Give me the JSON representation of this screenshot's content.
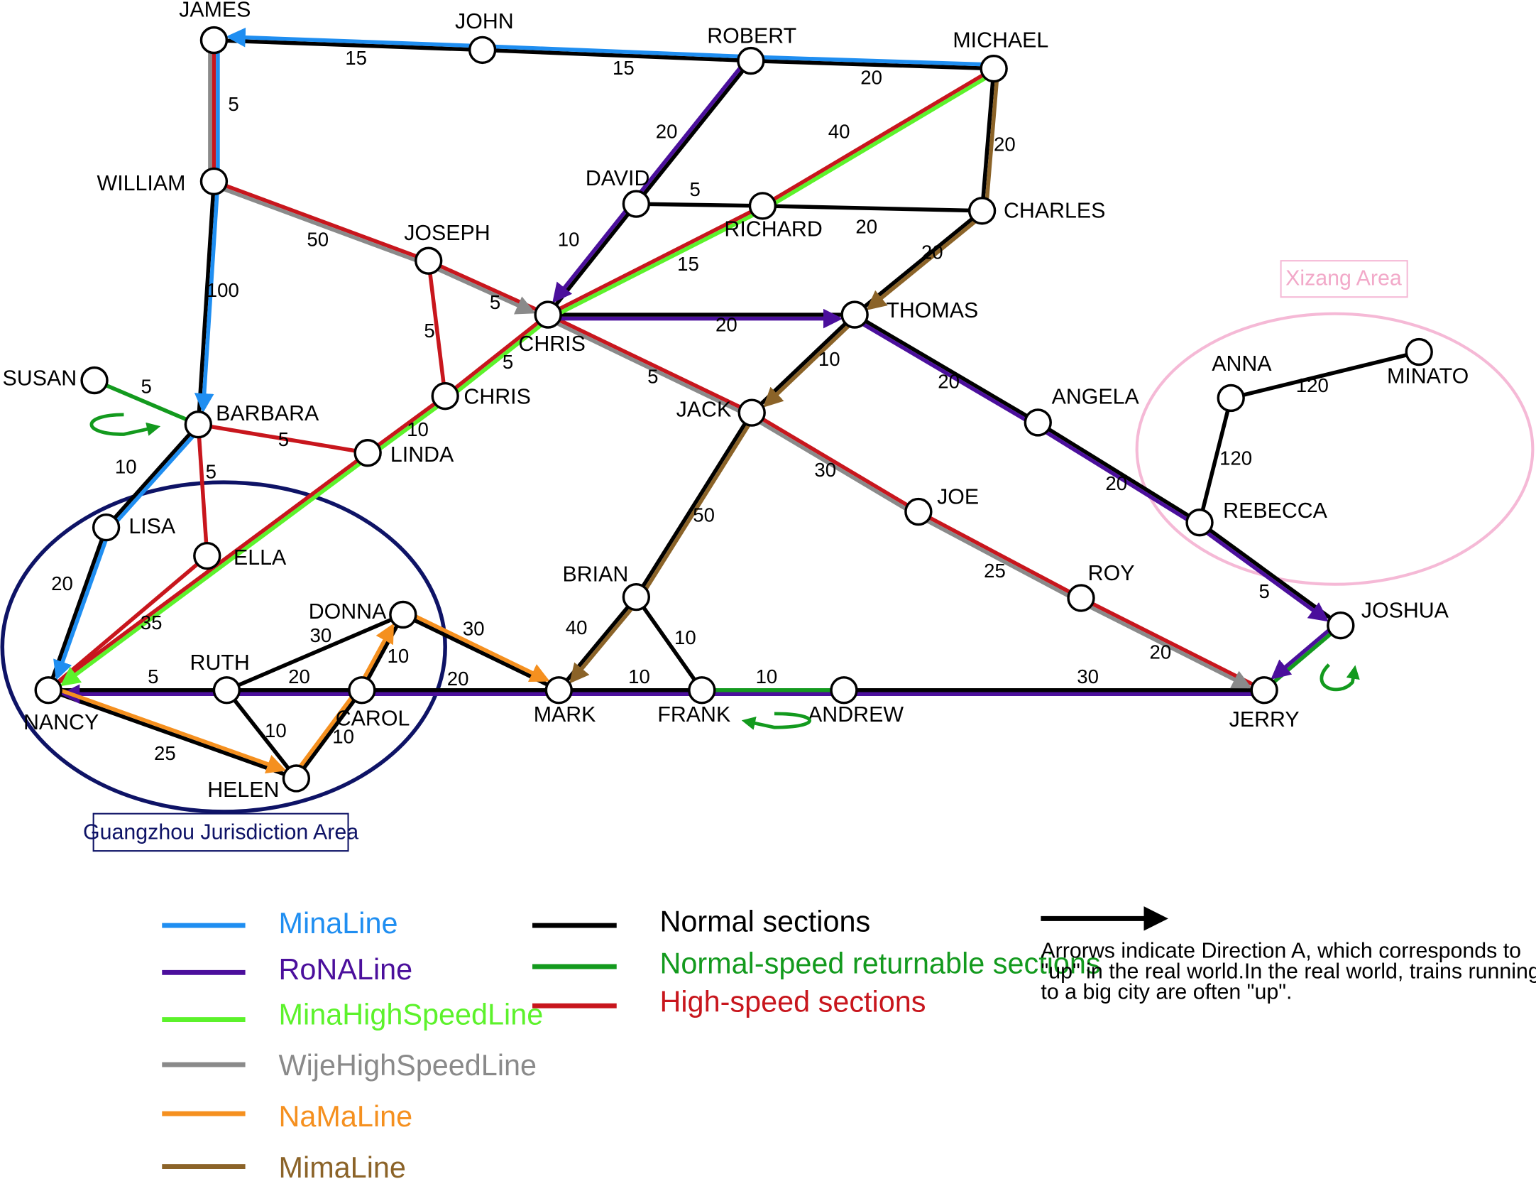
{
  "colors": {
    "mina": "#1f8ef1",
    "rona": "#4b0f9c",
    "minahs": "#5cf22b",
    "wije": "#8a8a8a",
    "nama": "#f5901f",
    "mima": "#8b6328",
    "normal": "#000000",
    "returnable": "#139a1e",
    "highspeed": "#c8161d",
    "guangzhou": "#0e1366",
    "xizang": "#f5b9d6",
    "xizang_text": "#f2a9c9"
  },
  "stations": [
    {
      "id": "JAMES",
      "label": "JAMES"
    },
    {
      "id": "JOHN",
      "label": "JOHN"
    },
    {
      "id": "ROBERT",
      "label": "ROBERT"
    },
    {
      "id": "MICHAEL",
      "label": "MICHAEL"
    },
    {
      "id": "WILLIAM",
      "label": "WILLIAM"
    },
    {
      "id": "DAVID",
      "label": "DAVID"
    },
    {
      "id": "RICHARD",
      "label": "RICHARD"
    },
    {
      "id": "CHARLES",
      "label": "CHARLES"
    },
    {
      "id": "JOSEPH",
      "label": "JOSEPH"
    },
    {
      "id": "CHRIS1",
      "label": "CHRIS"
    },
    {
      "id": "THOMAS",
      "label": "THOMAS"
    },
    {
      "id": "SUSAN",
      "label": "SUSAN"
    },
    {
      "id": "BARBARA",
      "label": "BARBARA"
    },
    {
      "id": "CHRIS2",
      "label": "CHRIS"
    },
    {
      "id": "LINDA",
      "label": "LINDA"
    },
    {
      "id": "JACK",
      "label": "JACK"
    },
    {
      "id": "ANGELA",
      "label": "ANGELA"
    },
    {
      "id": "LISA",
      "label": "LISA"
    },
    {
      "id": "ELLA",
      "label": "ELLA"
    },
    {
      "id": "JOE",
      "label": "JOE"
    },
    {
      "id": "REBECCA",
      "label": "REBECCA"
    },
    {
      "id": "ANNA",
      "label": "ANNA"
    },
    {
      "id": "MINATO",
      "label": "MINATO"
    },
    {
      "id": "BRIAN",
      "label": "BRIAN"
    },
    {
      "id": "ROY",
      "label": "ROY"
    },
    {
      "id": "DONNA",
      "label": "DONNA"
    },
    {
      "id": "JOSHUA",
      "label": "JOSHUA"
    },
    {
      "id": "RUTH",
      "label": "RUTH"
    },
    {
      "id": "NANCY",
      "label": "NANCY"
    },
    {
      "id": "CAROL",
      "label": "CAROL"
    },
    {
      "id": "MARK",
      "label": "MARK"
    },
    {
      "id": "FRANK",
      "label": "FRANK"
    },
    {
      "id": "ANDREW",
      "label": "ANDREW"
    },
    {
      "id": "JERRY",
      "label": "JERRY"
    },
    {
      "id": "HELEN",
      "label": "HELEN"
    }
  ],
  "sections": [
    {
      "a": "JAMES",
      "b": "JOHN",
      "w": "15",
      "kind": "normal",
      "lines": [
        "mina"
      ]
    },
    {
      "a": "JOHN",
      "b": "ROBERT",
      "w": "15",
      "kind": "normal",
      "lines": [
        "mina"
      ]
    },
    {
      "a": "ROBERT",
      "b": "MICHAEL",
      "w": "20",
      "kind": "normal",
      "lines": [
        "mina"
      ]
    },
    {
      "a": "JAMES",
      "b": "WILLIAM",
      "w": "5",
      "kind": "highspeed",
      "lines": [
        "mina",
        "wije"
      ]
    },
    {
      "a": "WILLIAM",
      "b": "BARBARA",
      "w": "100",
      "kind": "normal",
      "lines": [
        "mina"
      ]
    },
    {
      "a": "WILLIAM",
      "b": "JOSEPH",
      "w": "50",
      "kind": "highspeed",
      "lines": [
        "wije"
      ]
    },
    {
      "a": "JOSEPH",
      "b": "CHRIS1",
      "w": "5",
      "kind": "highspeed",
      "lines": [
        "wije"
      ]
    },
    {
      "a": "JOSEPH",
      "b": "CHRIS2",
      "w": "5",
      "kind": "highspeed",
      "lines": []
    },
    {
      "a": "ROBERT",
      "b": "DAVID",
      "w": "20",
      "kind": "normal",
      "lines": [
        "rona"
      ]
    },
    {
      "a": "DAVID",
      "b": "CHRIS1",
      "w": "10",
      "kind": "normal",
      "lines": [
        "rona"
      ]
    },
    {
      "a": "DAVID",
      "b": "RICHARD",
      "w": "5",
      "kind": "normal",
      "lines": []
    },
    {
      "a": "RICHARD",
      "b": "CHARLES",
      "w": "20",
      "kind": "normal",
      "lines": []
    },
    {
      "a": "MICHAEL",
      "b": "RICHARD",
      "w": "40",
      "kind": "highspeed",
      "lines": [
        "minahs"
      ]
    },
    {
      "a": "RICHARD",
      "b": "CHRIS1",
      "w": "15",
      "kind": "highspeed",
      "lines": [
        "minahs"
      ]
    },
    {
      "a": "MICHAEL",
      "b": "CHARLES",
      "w": "20",
      "kind": "normal",
      "lines": [
        "mima"
      ]
    },
    {
      "a": "CHARLES",
      "b": "THOMAS",
      "w": "20",
      "kind": "normal",
      "lines": [
        "mima"
      ]
    },
    {
      "a": "CHRIS1",
      "b": "THOMAS",
      "w": "20",
      "kind": "normal",
      "lines": [
        "rona"
      ]
    },
    {
      "a": "THOMAS",
      "b": "JACK",
      "w": "10",
      "kind": "normal",
      "lines": [
        "mima"
      ]
    },
    {
      "a": "THOMAS",
      "b": "ANGELA",
      "w": "20",
      "kind": "normal",
      "lines": [
        "rona"
      ]
    },
    {
      "a": "ANGELA",
      "b": "REBECCA",
      "w": "20",
      "kind": "normal",
      "lines": [
        "rona"
      ]
    },
    {
      "a": "REBECCA",
      "b": "JOSHUA",
      "w": "5",
      "kind": "normal",
      "lines": [
        "rona"
      ]
    },
    {
      "a": "CHRIS1",
      "b": "CHRIS2",
      "w": "5",
      "kind": "highspeed",
      "lines": [
        "minahs"
      ]
    },
    {
      "a": "CHRIS1",
      "b": "JACK",
      "w": "5",
      "kind": "highspeed",
      "lines": [
        "wije"
      ]
    },
    {
      "a": "JACK",
      "b": "JOE",
      "w": "30",
      "kind": "highspeed",
      "lines": [
        "wije"
      ]
    },
    {
      "a": "JOE",
      "b": "ROY",
      "w": "25",
      "kind": "highspeed",
      "lines": [
        "wije"
      ]
    },
    {
      "a": "ROY",
      "b": "JERRY",
      "w": "20",
      "kind": "highspeed",
      "lines": [
        "wije"
      ]
    },
    {
      "a": "CHRIS2",
      "b": "LINDA",
      "w": "10",
      "kind": "highspeed",
      "lines": [
        "minahs"
      ]
    },
    {
      "a": "LINDA",
      "b": "NANCY",
      "w": "35",
      "kind": "highspeed",
      "lines": [
        "minahs"
      ]
    },
    {
      "a": "BARBARA",
      "b": "LINDA",
      "w": "5",
      "kind": "highspeed",
      "lines": []
    },
    {
      "a": "BARBARA",
      "b": "ELLA",
      "w": "5",
      "kind": "highspeed",
      "lines": []
    },
    {
      "a": "ELLA",
      "b": "NANCY",
      "w": "",
      "kind": "highspeed",
      "lines": []
    },
    {
      "a": "SUSAN",
      "b": "BARBARA",
      "w": "5",
      "kind": "returnable",
      "lines": []
    },
    {
      "a": "BARBARA",
      "b": "LISA",
      "w": "10",
      "kind": "normal",
      "lines": [
        "mina"
      ]
    },
    {
      "a": "LISA",
      "b": "NANCY",
      "w": "20",
      "kind": "normal",
      "lines": [
        "mina"
      ]
    },
    {
      "a": "ANNA",
      "b": "MINATO",
      "w": "120",
      "kind": "normal",
      "lines": []
    },
    {
      "a": "ANNA",
      "b": "REBECCA",
      "w": "120",
      "kind": "normal",
      "lines": []
    },
    {
      "a": "JACK",
      "b": "BRIAN",
      "w": "50",
      "kind": "normal",
      "lines": [
        "mima"
      ]
    },
    {
      "a": "BRIAN",
      "b": "MARK",
      "w": "40",
      "kind": "normal",
      "lines": [
        "mima"
      ]
    },
    {
      "a": "BRIAN",
      "b": "FRANK",
      "w": "10",
      "kind": "normal",
      "lines": []
    },
    {
      "a": "JOSHUA",
      "b": "JERRY",
      "w": "",
      "kind": "returnable",
      "lines": [
        "rona"
      ]
    },
    {
      "a": "NANCY",
      "b": "RUTH",
      "w": "5",
      "kind": "normal",
      "lines": [
        "rona"
      ]
    },
    {
      "a": "RUTH",
      "b": "CAROL",
      "w": "20",
      "kind": "normal",
      "lines": [
        "rona"
      ]
    },
    {
      "a": "CAROL",
      "b": "MARK",
      "w": "20",
      "kind": "normal",
      "lines": [
        "rona"
      ]
    },
    {
      "a": "MARK",
      "b": "FRANK",
      "w": "10",
      "kind": "normal",
      "lines": [
        "rona"
      ]
    },
    {
      "a": "FRANK",
      "b": "ANDREW",
      "w": "10",
      "kind": "returnable",
      "lines": [
        "rona"
      ]
    },
    {
      "a": "ANDREW",
      "b": "JERRY",
      "w": "30",
      "kind": "normal",
      "lines": [
        "rona"
      ]
    },
    {
      "a": "RUTH",
      "b": "DONNA",
      "w": "30",
      "kind": "normal",
      "lines": []
    },
    {
      "a": "DONNA",
      "b": "MARK",
      "w": "30",
      "kind": "normal",
      "lines": [
        "nama"
      ]
    },
    {
      "a": "RUTH",
      "b": "HELEN",
      "w": "10",
      "kind": "normal",
      "lines": []
    },
    {
      "a": "NANCY",
      "b": "HELEN",
      "w": "25",
      "kind": "normal",
      "lines": [
        "nama"
      ]
    },
    {
      "a": "HELEN",
      "b": "CAROL",
      "w": "10",
      "kind": "normal",
      "lines": [
        "nama"
      ]
    },
    {
      "a": "CAROL",
      "b": "DONNA",
      "w": "10",
      "kind": "normal",
      "lines": [
        "nama"
      ]
    }
  ],
  "areas": {
    "guangzhou": "Guangzhou Jurisdiction Area",
    "xizang": "Xizang Area"
  },
  "legend": {
    "lines": [
      {
        "key": "mina",
        "label": "MinaLine"
      },
      {
        "key": "rona",
        "label": "RoNALine"
      },
      {
        "key": "minahs",
        "label": "MinaHighSpeedLine"
      },
      {
        "key": "wije",
        "label": "WijeHighSpeedLine"
      },
      {
        "key": "nama",
        "label": "NaMaLine"
      },
      {
        "key": "mima",
        "label": "MimaLine"
      }
    ],
    "sections": [
      {
        "key": "normal",
        "label": "Normal sections",
        "text_color": "#000000"
      },
      {
        "key": "returnable",
        "label": "Normal-speed returnable sections",
        "text_color": "#139a1e"
      },
      {
        "key": "highspeed",
        "label": "High-speed sections",
        "text_color": "#c8161d"
      }
    ],
    "arrow_note": [
      "Arrorws indicate Direction A, which corresponds to",
      "\"up\" in the real world.In the real world, trains running",
      "to a big city are often \"up\"."
    ]
  }
}
